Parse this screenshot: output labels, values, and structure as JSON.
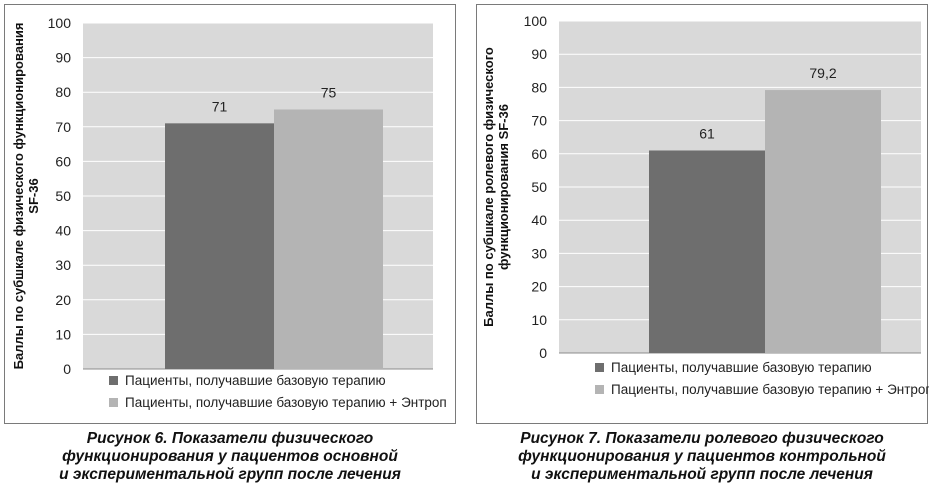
{
  "chart_data": [
    {
      "type": "bar",
      "title": "",
      "ylabel": [
        "Баллы по субшкале физического функционирования",
        "SF-36"
      ],
      "ylim": [
        0,
        100
      ],
      "yticks": [
        0,
        10,
        20,
        30,
        40,
        50,
        60,
        70,
        80,
        90,
        100
      ],
      "grid": true,
      "legend_position": "bottom",
      "series": [
        {
          "name": "Пациенты, получавшие базовую терапию",
          "values": [
            71
          ],
          "labels": [
            "71"
          ],
          "color": "#6e6e6e"
        },
        {
          "name": "Пациенты, получавшие базовую терапию + Энтроп",
          "values": [
            75
          ],
          "labels": [
            "75"
          ],
          "color": "#b4b4b4"
        }
      ]
    },
    {
      "type": "bar",
      "title": "",
      "ylabel": [
        "Баллы по субшкале ролевого физического",
        "функционирования SF-36"
      ],
      "ylim": [
        0,
        100
      ],
      "yticks": [
        0,
        10,
        20,
        30,
        40,
        50,
        60,
        70,
        80,
        90,
        100
      ],
      "grid": true,
      "legend_position": "bottom",
      "series": [
        {
          "name": "Пациенты, получавшие базовую терапию",
          "values": [
            61
          ],
          "labels": [
            "61"
          ],
          "color": "#6e6e6e"
        },
        {
          "name": "Пациенты, получавшие базовую терапию + Энтроп",
          "values": [
            79.2
          ],
          "labels": [
            "79,2"
          ],
          "color": "#b4b4b4"
        }
      ]
    }
  ],
  "captions": [
    {
      "lines": [
        "Рисунок 6. Показатели физического",
        "функционирования у пациентов основной",
        "и экспериментальной групп после лечения"
      ]
    },
    {
      "lines": [
        "Рисунок 7. Показатели ролевого физического",
        "функционирования у пациентов контрольной",
        "и экспериментальной групп после лечения"
      ]
    }
  ],
  "colors": {
    "plot_background": "#d9d9d9",
    "gridline": "#ffffff"
  }
}
